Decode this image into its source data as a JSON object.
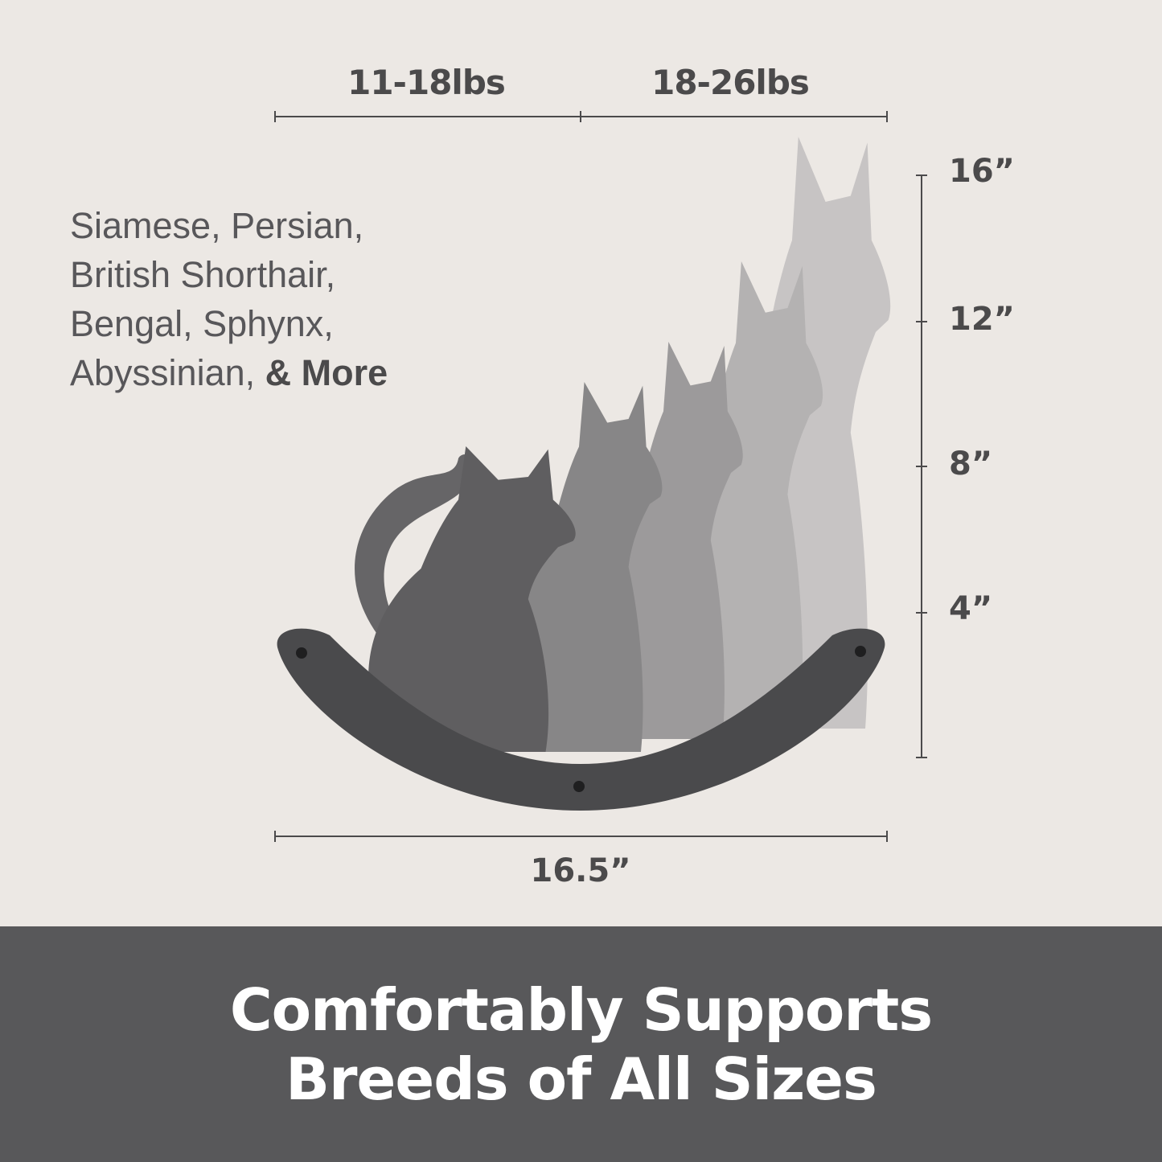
{
  "weights": {
    "left": "11-18lbs",
    "right": "18-26lbs"
  },
  "heights": [
    "16”",
    "12”",
    "8”",
    "4”"
  ],
  "breeds": {
    "line1": "Siamese, Persian,",
    "line2": "British Shorthair,",
    "line3": "Bengal, Sphynx,",
    "line4_prefix": "Abyssinian, ",
    "line4_bold": "& More"
  },
  "width_label": "16.5”",
  "banner": {
    "line1": "Comfortably Supports",
    "line2": "Breeds of All Sizes"
  },
  "colors": {
    "background": "#ece8e4",
    "banner": "#58585a",
    "text": "#4b4a4b",
    "felt": "#4a4a4c"
  }
}
